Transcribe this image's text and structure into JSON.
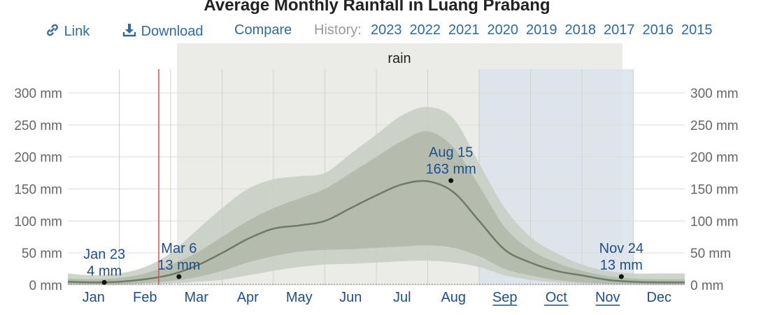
{
  "title": "Average Monthly Rainfall in Luang Prabang",
  "toolbar": {
    "link_label": "Link",
    "download_label": "Download",
    "compare_label": "Compare",
    "history_label": "History:",
    "years": [
      "2023",
      "2022",
      "2021",
      "2020",
      "2019",
      "2018",
      "2017",
      "2016",
      "2015"
    ],
    "link_color": "#2f6aa3"
  },
  "chart_data": {
    "type": "area",
    "series_label": "rain",
    "x_unit": "month",
    "categories": [
      "Jan",
      "Feb",
      "Mar",
      "Apr",
      "May",
      "Jun",
      "Jul",
      "Aug",
      "Sep",
      "Oct",
      "Nov",
      "Dec"
    ],
    "underlined_months": [
      "Sep",
      "Oct",
      "Nov"
    ],
    "ylim": [
      0,
      300
    ],
    "y_ticks": [
      "0 mm",
      "50 mm",
      "100 mm",
      "150 mm",
      "200 mm",
      "250 mm",
      "300 mm"
    ],
    "y_tick_values": [
      0,
      50,
      100,
      150,
      200,
      250,
      300
    ],
    "grid": true,
    "x": [
      0.0,
      0.5,
      1.0,
      1.5,
      2.0,
      2.5,
      3.0,
      3.5,
      4.0,
      4.5,
      5.0,
      5.5,
      6.0,
      6.5,
      7.0,
      7.5,
      8.0,
      8.5,
      9.0,
      9.5,
      10.0,
      10.5,
      11.0,
      11.5,
      12.0
    ],
    "mean": [
      5,
      4,
      5,
      9,
      16,
      30,
      50,
      72,
      88,
      93,
      100,
      120,
      140,
      157,
      162,
      145,
      100,
      55,
      35,
      22,
      15,
      8,
      5,
      4,
      4
    ],
    "band_25_75": [
      [
        1,
        10
      ],
      [
        1,
        9
      ],
      [
        1,
        11
      ],
      [
        3,
        18
      ],
      [
        6,
        32
      ],
      [
        12,
        50
      ],
      [
        22,
        75
      ],
      [
        35,
        100
      ],
      [
        45,
        120
      ],
      [
        52,
        135
      ],
      [
        55,
        150
      ],
      [
        56,
        175
      ],
      [
        58,
        200
      ],
      [
        60,
        225
      ],
      [
        62,
        240
      ],
      [
        58,
        215
      ],
      [
        45,
        155
      ],
      [
        25,
        90
      ],
      [
        15,
        55
      ],
      [
        8,
        35
      ],
      [
        4,
        22
      ],
      [
        2,
        14
      ],
      [
        1,
        10
      ],
      [
        1,
        9
      ],
      [
        1,
        9
      ]
    ],
    "band_10_90": [
      [
        0,
        18
      ],
      [
        0,
        15
      ],
      [
        0,
        18
      ],
      [
        1,
        28
      ],
      [
        2,
        50
      ],
      [
        5,
        85
      ],
      [
        8,
        120
      ],
      [
        15,
        150
      ],
      [
        22,
        165
      ],
      [
        28,
        170
      ],
      [
        32,
        175
      ],
      [
        33,
        205
      ],
      [
        35,
        235
      ],
      [
        37,
        265
      ],
      [
        38,
        278
      ],
      [
        35,
        260
      ],
      [
        28,
        190
      ],
      [
        15,
        120
      ],
      [
        8,
        75
      ],
      [
        4,
        50
      ],
      [
        2,
        32
      ],
      [
        1,
        22
      ],
      [
        1,
        18
      ],
      [
        0,
        18
      ],
      [
        0,
        18
      ]
    ],
    "annotations": [
      {
        "date": "Jan 23",
        "value": 4,
        "label": "4 mm"
      },
      {
        "date": "Mar 6",
        "value": 13,
        "label": "13 mm"
      },
      {
        "date": "Aug 15",
        "value": 163,
        "label": "163 mm"
      },
      {
        "date": "Nov 24",
        "value": 13,
        "label": "13 mm"
      }
    ],
    "colors": {
      "mean": "#6d7a66",
      "band_inner": "#b0b8a9",
      "band_outer": "#c7cec2",
      "gray_season": "#ebebe8",
      "blue_season": "#dde4ea",
      "today_line": "#d9534f",
      "annotation_text": "#1f4e8c",
      "axis_text": "#666666"
    }
  }
}
